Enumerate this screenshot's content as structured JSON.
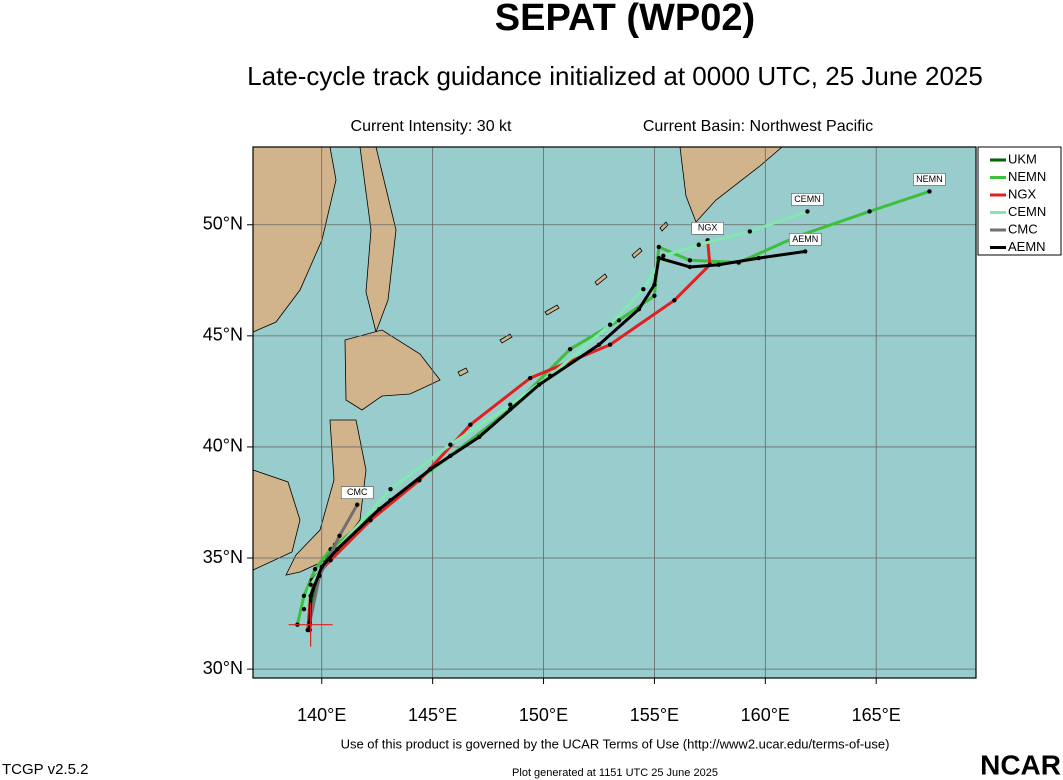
{
  "chart_data": {
    "type": "track",
    "title": "SEPAT (WP02)",
    "subtitle": "Late-cycle track guidance initialized at 0000 UTC, 25 June 2025",
    "intensity": "Current Intensity: 30 kt",
    "basin": "Current Basin: Northwest Pacific",
    "xlim": [
      136.9,
      169.5
    ],
    "ylim": [
      29.6,
      53.5
    ],
    "xticks": [
      {
        "value": 140,
        "label": "140°E"
      },
      {
        "value": 145,
        "label": "145°E"
      },
      {
        "value": 150,
        "label": "150°E"
      },
      {
        "value": 155,
        "label": "155°E"
      },
      {
        "value": 160,
        "label": "160°E"
      },
      {
        "value": 165,
        "label": "165°E"
      }
    ],
    "yticks": [
      {
        "value": 30,
        "label": "30°N"
      },
      {
        "value": 35,
        "label": "35°N"
      },
      {
        "value": 40,
        "label": "40°N"
      },
      {
        "value": 45,
        "label": "45°N"
      },
      {
        "value": 50,
        "label": "50°N"
      }
    ],
    "grid": true,
    "current_position": {
      "lon": 139.5,
      "lat": 32.0,
      "color": "#e02020"
    },
    "series": [
      {
        "name": "UKM",
        "color": "#006400",
        "end_label": false,
        "x": [
          139.46,
          139.7,
          140.6
        ],
        "values": [
          32.0,
          34.0,
          35.6
        ]
      },
      {
        "name": "NEMN",
        "color": "#3cbf3c",
        "end_label": true,
        "x": [
          138.9,
          139.2,
          139.7,
          140.4,
          143.1,
          145.8,
          148.5,
          151.2,
          153.4,
          155.0,
          155.2,
          156.6,
          158.8,
          161.5,
          164.7,
          167.4
        ],
        "values": [
          32.0,
          33.3,
          34.5,
          35.4,
          37.6,
          39.6,
          41.7,
          44.4,
          45.7,
          46.8,
          49.0,
          48.4,
          48.3,
          49.5,
          50.6,
          51.5
        ]
      },
      {
        "name": "NGX",
        "color": "#e02020",
        "end_label": true,
        "x": [
          139.37,
          139.55,
          140.4,
          142.2,
          144.4,
          146.7,
          149.4,
          153.0,
          155.9,
          157.5,
          157.4
        ],
        "values": [
          31.76,
          34.0,
          34.9,
          36.7,
          38.5,
          41.0,
          43.1,
          44.6,
          46.6,
          48.2,
          49.3
        ]
      },
      {
        "name": "CEMN",
        "color": "#80e8b0",
        "end_label": true,
        "x": [
          139.2,
          139.5,
          140.4,
          143.1,
          145.8,
          148.5,
          150.3,
          153.0,
          154.5,
          155.4,
          157.0,
          159.3,
          161.9
        ],
        "values": [
          32.7,
          33.8,
          35.1,
          38.1,
          40.1,
          41.9,
          43.2,
          45.5,
          47.1,
          48.6,
          49.1,
          49.7,
          50.6
        ]
      },
      {
        "name": "CMC",
        "color": "#707070",
        "end_label": true,
        "x": [
          139.46,
          139.9,
          140.8,
          141.6
        ],
        "values": [
          32.1,
          34.2,
          36.0,
          37.4
        ]
      },
      {
        "name": "AEMN",
        "color": "#000000",
        "end_label": true,
        "x": [
          139.46,
          139.5,
          140.0,
          140.7,
          142.6,
          144.9,
          147.1,
          149.8,
          152.5,
          154.3,
          155.0,
          155.2,
          156.6,
          157.9,
          159.7,
          161.8
        ],
        "values": [
          31.76,
          33.3,
          34.6,
          35.4,
          37.2,
          39.0,
          40.45,
          42.8,
          44.6,
          46.2,
          47.3,
          48.5,
          48.1,
          48.2,
          48.5,
          48.8
        ]
      }
    ]
  },
  "footer": {
    "terms": "Use of this product is governed by the UCAR Terms of Use (http://www2.ucar.edu/terms-of-use)",
    "version": "TCGP v2.5.2",
    "generated": "Plot generated at 1151 UTC   25 June 2025",
    "logo": "NCAR"
  }
}
